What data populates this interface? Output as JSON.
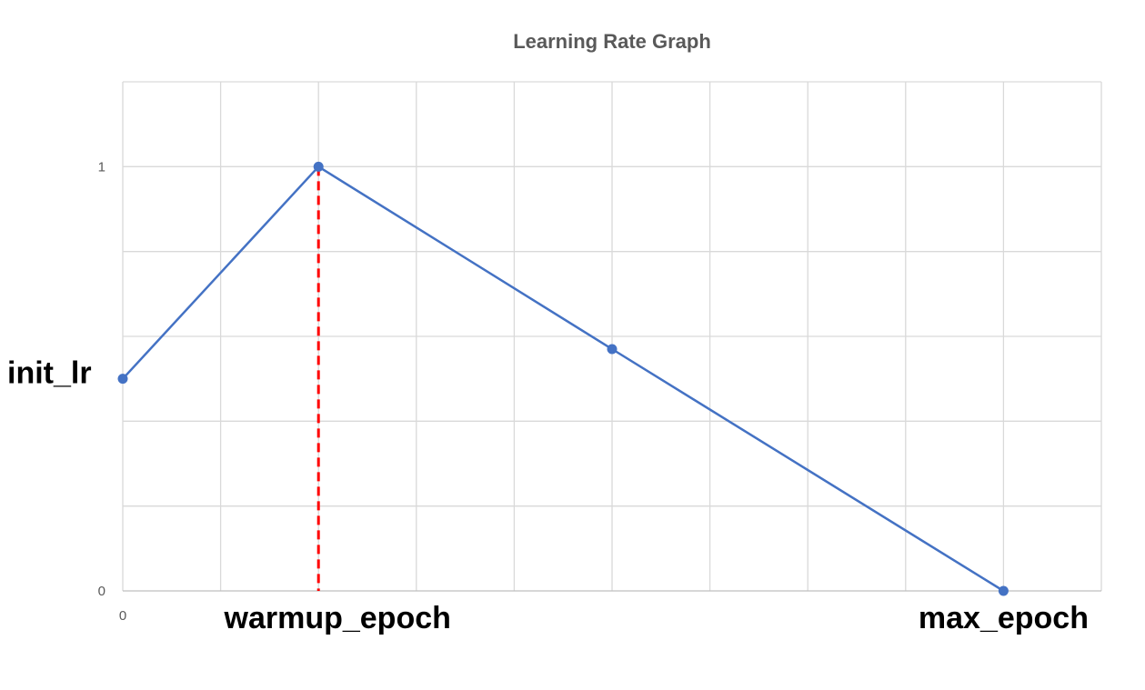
{
  "chart_data": {
    "type": "line",
    "title": "Learning Rate Graph",
    "xlabel": "",
    "ylabel": "",
    "grid": true,
    "legend": "none",
    "xlim": [
      0,
      10
    ],
    "ylim": [
      0,
      1.2
    ],
    "x_gridlines": 10,
    "y_gridlines": 6,
    "y_tick_labels": [
      {
        "value": 0,
        "label": "0"
      },
      {
        "value": 1,
        "label": "1"
      }
    ],
    "x_tick_labels": [
      {
        "value": 0,
        "label": "0"
      }
    ],
    "series": [
      {
        "color": "#4472c4",
        "points": [
          {
            "x": 0,
            "y": 0.5
          },
          {
            "x": 2,
            "y": 1.0
          },
          {
            "x": 5,
            "y": 0.57
          },
          {
            "x": 9,
            "y": 0.0
          }
        ]
      }
    ],
    "annotations": {
      "init_lr": {
        "text": "init_lr",
        "y": 0.5
      },
      "warmup_epoch": {
        "text": "warmup_epoch",
        "x": 2
      },
      "max_epoch": {
        "text": "max_epoch",
        "x": 9
      }
    },
    "warmup_line": {
      "x": 2,
      "color": "#ff0000"
    }
  }
}
